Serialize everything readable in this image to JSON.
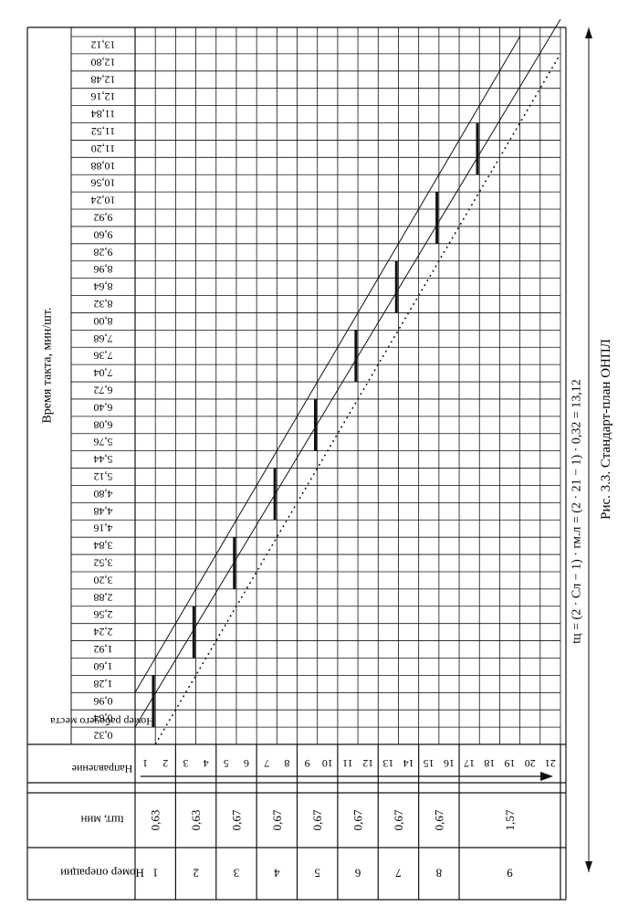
{
  "figure": {
    "caption": "Рис. 3.3. Стандарт-план ОНПЛ",
    "formula": "tц = (2 · Сл − 1) · rм.л = (2 · 21 − 1) · 0,32 = 13,12"
  },
  "table": {
    "headers": {
      "operation_number": "Номер операции",
      "time": "tшт, мин",
      "direction": "Направление",
      "workplace_number": "Номер рабочего места",
      "takt_time": "Время такта, мин/шт."
    },
    "operations": [
      {
        "number": "1",
        "time": "0,63",
        "workplaces": [
          "1",
          "2"
        ]
      },
      {
        "number": "2",
        "time": "0,63",
        "workplaces": [
          "3",
          "4"
        ]
      },
      {
        "number": "3",
        "time": "0,67",
        "workplaces": [
          "5",
          "6"
        ]
      },
      {
        "number": "4",
        "time": "0,67",
        "workplaces": [
          "7",
          "8"
        ]
      },
      {
        "number": "5",
        "time": "0,67",
        "workplaces": [
          "9",
          "10"
        ]
      },
      {
        "number": "6",
        "time": "0,67",
        "workplaces": [
          "11",
          "12"
        ]
      },
      {
        "number": "7",
        "time": "0,67",
        "workplaces": [
          "13",
          "14"
        ]
      },
      {
        "number": "8",
        "time": "0,67",
        "workplaces": [
          "15",
          "16"
        ]
      },
      {
        "number": "9",
        "time": "1,57",
        "workplaces": [
          "17",
          "18",
          "19",
          "20",
          "21"
        ]
      }
    ],
    "time_ticks": [
      "0,32",
      "0,64",
      "0,96",
      "1,28",
      "1,60",
      "1,92",
      "2,24",
      "2,56",
      "2,88",
      "3,20",
      "3,52",
      "3,84",
      "4,16",
      "4,48",
      "4,80",
      "5,12",
      "5,44",
      "5,76",
      "6,08",
      "6,40",
      "6,72",
      "7,04",
      "7,36",
      "7,68",
      "8,00",
      "8,32",
      "8,64",
      "8,96",
      "9,28",
      "9,60",
      "9,92",
      "10,24",
      "10,56",
      "10,88",
      "11,20",
      "11,52",
      "11,84",
      "12,16",
      "12,48",
      "12,80",
      "13,12"
    ]
  }
}
